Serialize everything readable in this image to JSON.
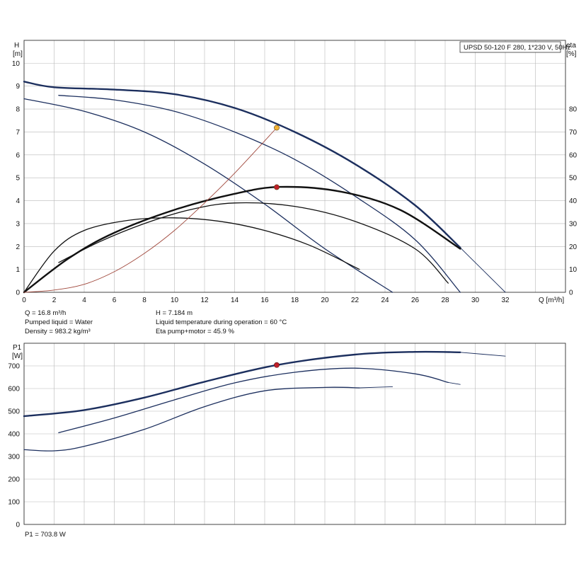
{
  "chart_data": [
    {
      "type": "line",
      "title": "UPSD 50-120 F 280, 1*230 V, 50Hz",
      "left_axis": {
        "label": "H",
        "unit": "[m]",
        "ylim": [
          0,
          11
        ],
        "ticks": [
          0,
          1,
          2,
          3,
          4,
          5,
          6,
          7,
          8,
          9,
          10
        ]
      },
      "right_axis": {
        "label": "eta",
        "unit": "[%]",
        "ylim": [
          0,
          110
        ],
        "ticks": [
          0,
          10,
          20,
          30,
          40,
          50,
          60,
          70,
          80
        ]
      },
      "x_axis": {
        "label": "Q [m³/h]",
        "xlim": [
          0,
          36
        ],
        "ticks": [
          0,
          2,
          4,
          6,
          8,
          10,
          12,
          14,
          16,
          18,
          20,
          22,
          24,
          26,
          28,
          30,
          32
        ]
      },
      "grid": true,
      "series": [
        {
          "role": "H curve",
          "axis": "left",
          "color": "#1c2f5e",
          "width": 2.4,
          "x": [
            0,
            2,
            6,
            10,
            14,
            18,
            22,
            26,
            29
          ],
          "y": [
            9.2,
            8.95,
            8.85,
            8.65,
            8.05,
            7.0,
            5.6,
            3.8,
            1.95
          ]
        },
        {
          "role": "H extension",
          "axis": "left",
          "color": "#1c2f5e",
          "width": 0.9,
          "x": [
            29,
            30,
            31,
            32
          ],
          "y": [
            1.95,
            1.3,
            0.65,
            0
          ]
        },
        {
          "role": "H curve",
          "axis": "left",
          "color": "#1c2f5e",
          "width": 1.3,
          "x": [
            2.3,
            6,
            10,
            14,
            18,
            22,
            26,
            29
          ],
          "y": [
            8.6,
            8.4,
            7.9,
            7.0,
            5.8,
            4.2,
            2.3,
            0
          ]
        },
        {
          "role": "H curve",
          "axis": "left",
          "color": "#1c2f5e",
          "width": 1.3,
          "x": [
            0,
            4,
            8,
            12,
            16,
            20,
            24.5
          ],
          "y": [
            8.45,
            7.9,
            7.0,
            5.6,
            3.85,
            1.9,
            0
          ]
        },
        {
          "role": "eta curve",
          "axis": "right",
          "color": "#111111",
          "width": 2.4,
          "x": [
            0,
            3,
            6,
            10,
            14,
            17,
            21,
            25,
            29
          ],
          "y": [
            0,
            15,
            26,
            36,
            43,
            46,
            44,
            36,
            19
          ]
        },
        {
          "role": "eta curve",
          "axis": "right",
          "color": "#111111",
          "width": 1.3,
          "x": [
            2.3,
            5,
            8,
            11,
            14,
            18,
            22,
            26,
            28.2
          ],
          "y": [
            13,
            22,
            30,
            36,
            39,
            37.5,
            31,
            19,
            4
          ]
        },
        {
          "role": "eta curve",
          "axis": "right",
          "color": "#111111",
          "width": 1.3,
          "x": [
            0,
            2,
            4,
            7,
            10,
            13,
            16,
            19,
            22.3
          ],
          "y": [
            0,
            18,
            27,
            31.5,
            32.5,
            31,
            27,
            20.5,
            10
          ]
        },
        {
          "role": "system curve",
          "axis": "left",
          "color": "#a0483c",
          "width": 0.9,
          "x": [
            0,
            2,
            4,
            6,
            8,
            10,
            12,
            14,
            16.8
          ],
          "y": [
            0,
            0.1,
            0.35,
            0.9,
            1.7,
            2.7,
            3.9,
            5.2,
            7.184
          ]
        }
      ],
      "markers": [
        {
          "axis": "left",
          "x": 16.8,
          "y": 7.184,
          "color": "#f2b233"
        },
        {
          "axis": "right",
          "x": 16.8,
          "y": 45.9,
          "color": "#c0202a"
        }
      ],
      "info": {
        "q": "Q = 16.8 m³/h",
        "pumped_liquid": "Pumped liquid = Water",
        "density": "Density = 983.2 kg/m³",
        "h": "H = 7.184 m",
        "liquid_temp": "Liquid temperature during operation = 60 °C",
        "eta": "Eta pump+motor = 45.9 %"
      }
    },
    {
      "type": "line",
      "left_axis": {
        "label": "P1",
        "unit": "[W]",
        "ylim": [
          0,
          800
        ],
        "ticks": [
          0,
          100,
          200,
          300,
          400,
          500,
          600,
          700
        ]
      },
      "x_axis": {
        "xlim": [
          0,
          36
        ]
      },
      "grid": true,
      "series": [
        {
          "role": "P1 curve",
          "color": "#1c2f5e",
          "width": 2.4,
          "x": [
            0,
            4,
            8,
            12,
            16.8,
            22,
            26,
            29
          ],
          "y": [
            478,
            505,
            560,
            630,
            703.8,
            750,
            762,
            760
          ]
        },
        {
          "role": "P1 extension",
          "color": "#1c2f5e",
          "width": 0.9,
          "x": [
            29,
            32
          ],
          "y": [
            760,
            743
          ]
        },
        {
          "role": "P1 curve",
          "color": "#1c2f5e",
          "width": 1.3,
          "x": [
            2.3,
            6,
            10,
            14,
            18,
            22,
            26,
            28.2
          ],
          "y": [
            405,
            470,
            550,
            625,
            672,
            690,
            665,
            627
          ]
        },
        {
          "role": "P1 extension",
          "color": "#1c2f5e",
          "width": 0.9,
          "x": [
            28.2,
            29
          ],
          "y": [
            627,
            618
          ]
        },
        {
          "role": "P1 curve",
          "color": "#1c2f5e",
          "width": 1.3,
          "x": [
            0,
            2,
            4,
            8,
            12,
            16,
            20,
            22.3
          ],
          "y": [
            330,
            325,
            345,
            420,
            520,
            590,
            605,
            603
          ]
        },
        {
          "role": "P1 extension",
          "color": "#1c2f5e",
          "width": 0.9,
          "x": [
            22.3,
            24.5
          ],
          "y": [
            603,
            608
          ]
        }
      ],
      "markers": [
        {
          "x": 16.8,
          "y": 703.8,
          "color": "#c0202a"
        }
      ],
      "info": {
        "p1": "P1 = 703.8 W"
      }
    }
  ]
}
